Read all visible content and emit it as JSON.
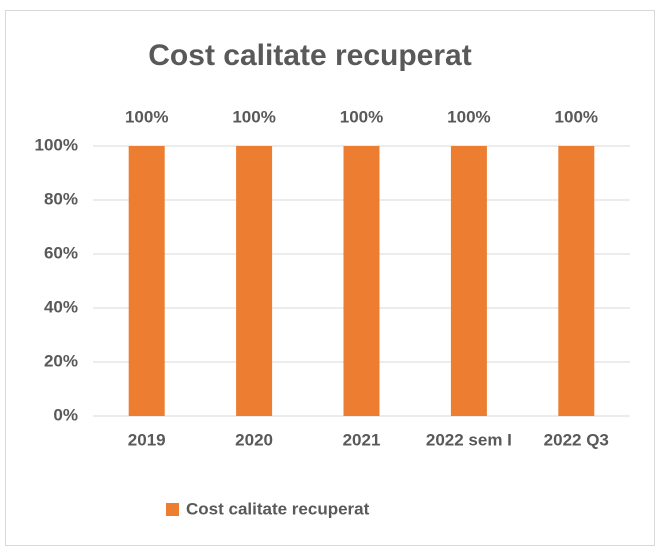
{
  "chart_data": {
    "type": "bar",
    "title": "Cost calitate recuperat",
    "categories": [
      "2019",
      "2020",
      "2021",
      "2022 sem I",
      "2022 Q3"
    ],
    "series": [
      {
        "name": "Cost calitate recuperat",
        "color": "#ed7d31",
        "values": [
          100,
          100,
          100,
          100,
          100
        ],
        "value_labels": [
          "100%",
          "100%",
          "100%",
          "100%",
          "100%"
        ]
      }
    ],
    "ylim": [
      0,
      100
    ],
    "yticks": [
      {
        "value": 0,
        "label": "0%"
      },
      {
        "value": 20,
        "label": "20%"
      },
      {
        "value": 40,
        "label": "40%"
      },
      {
        "value": 60,
        "label": "60%"
      },
      {
        "value": 80,
        "label": "80%"
      },
      {
        "value": 100,
        "label": "100%"
      }
    ],
    "grid": true,
    "legend": "bottom"
  }
}
